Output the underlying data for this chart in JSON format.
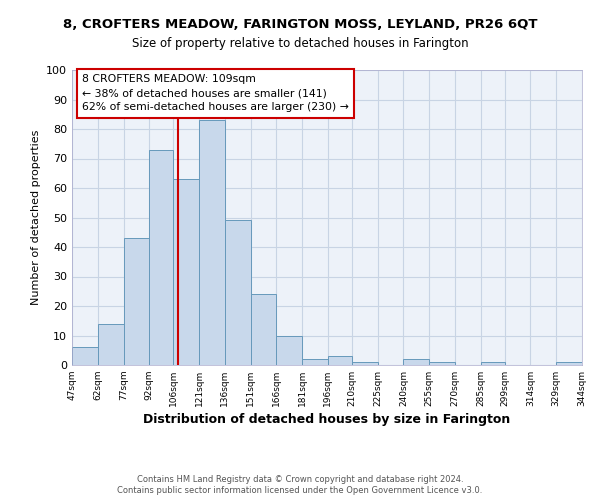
{
  "title": "8, CROFTERS MEADOW, FARINGTON MOSS, LEYLAND, PR26 6QT",
  "subtitle": "Size of property relative to detached houses in Farington",
  "xlabel": "Distribution of detached houses by size in Farington",
  "ylabel": "Number of detached properties",
  "bin_edges": [
    47,
    62,
    77,
    92,
    106,
    121,
    136,
    151,
    166,
    181,
    196,
    210,
    225,
    240,
    255,
    270,
    285,
    299,
    314,
    329,
    344
  ],
  "bin_counts": [
    6,
    14,
    43,
    73,
    63,
    83,
    49,
    24,
    10,
    2,
    3,
    1,
    0,
    2,
    1,
    0,
    1,
    0,
    0,
    1
  ],
  "bar_color": "#c8d8eb",
  "bar_edge_color": "#6699bb",
  "property_size": 109,
  "vline_color": "#cc0000",
  "annotation_box_color": "#cc0000",
  "annotation_lines": [
    "8 CROFTERS MEADOW: 109sqm",
    "← 38% of detached houses are smaller (141)",
    "62% of semi-detached houses are larger (230) →"
  ],
  "ylim": [
    0,
    100
  ],
  "yticks": [
    0,
    10,
    20,
    30,
    40,
    50,
    60,
    70,
    80,
    90,
    100
  ],
  "tick_labels": [
    "47sqm",
    "62sqm",
    "77sqm",
    "92sqm",
    "106sqm",
    "121sqm",
    "136sqm",
    "151sqm",
    "166sqm",
    "181sqm",
    "196sqm",
    "210sqm",
    "225sqm",
    "240sqm",
    "255sqm",
    "270sqm",
    "285sqm",
    "299sqm",
    "314sqm",
    "329sqm",
    "344sqm"
  ],
  "grid_color": "#c8d4e4",
  "background_color": "#edf2f9",
  "footer_line1": "Contains HM Land Registry data © Crown copyright and database right 2024.",
  "footer_line2": "Contains public sector information licensed under the Open Government Licence v3.0."
}
